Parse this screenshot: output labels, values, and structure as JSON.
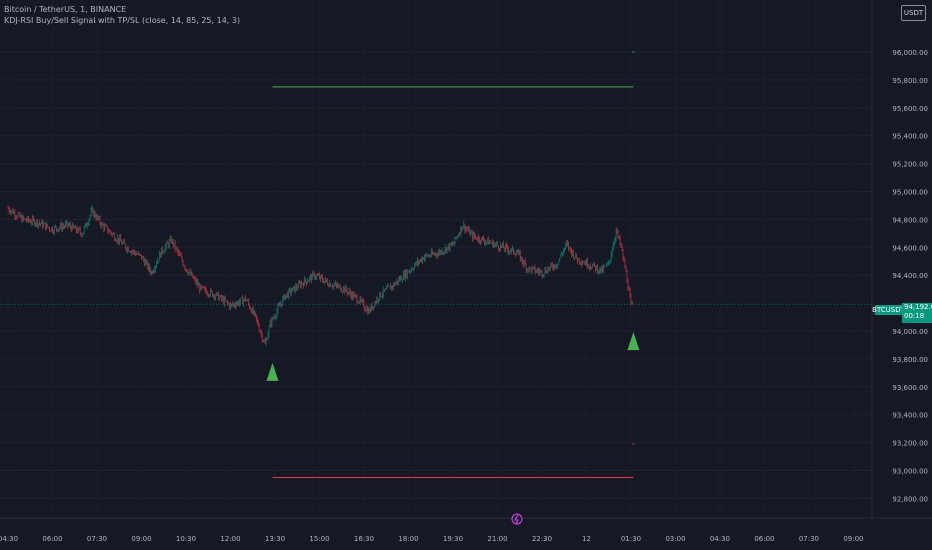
{
  "header": {
    "symbol_line": "Bitcoin / TetherUS, 1, BINANCE",
    "indicator_line": "KDJ-RSI Buy/Sell Signal with TP/SL (close, 14, 85, 25, 14, 3)"
  },
  "currency_button": "USDT",
  "price_badge": {
    "symbol": "BTCUSDT",
    "price": "94,192.00",
    "countdown": "00:18"
  },
  "colors": {
    "background": "#151924",
    "up": "#089981",
    "down": "#f23645",
    "tp": "#4caf50",
    "sl": "#f23645",
    "grid": "#1f2331"
  },
  "chart_data": {
    "type": "candlestick",
    "interval": "1",
    "y_axis": {
      "ticks": [
        {
          "value": 96000,
          "label": "96,000.00"
        },
        {
          "value": 95800,
          "label": "95,800.00"
        },
        {
          "value": 95600,
          "label": "95,600.00"
        },
        {
          "value": 95400,
          "label": "95,400.00"
        },
        {
          "value": 95200,
          "label": "95,200.00"
        },
        {
          "value": 95000,
          "label": "95,000.00"
        },
        {
          "value": 94800,
          "label": "94,800.00"
        },
        {
          "value": 94600,
          "label": "94,600.00"
        },
        {
          "value": 94400,
          "label": "94,400.00"
        },
        {
          "value": 94000,
          "label": "94,000.00"
        },
        {
          "value": 93800,
          "label": "93,800.00"
        },
        {
          "value": 93600,
          "label": "93,600.00"
        },
        {
          "value": 93400,
          "label": "93,400.00"
        },
        {
          "value": 93200,
          "label": "93,200.00"
        },
        {
          "value": 93000,
          "label": "93,000.00"
        },
        {
          "value": 92800,
          "label": "92,800.00"
        }
      ]
    },
    "x_axis": {
      "ticks": [
        {
          "t": 270,
          "label": "04:30"
        },
        {
          "t": 360,
          "label": "06:00"
        },
        {
          "t": 450,
          "label": "07:30"
        },
        {
          "t": 540,
          "label": "09:00"
        },
        {
          "t": 630,
          "label": "10:30"
        },
        {
          "t": 720,
          "label": "12:00"
        },
        {
          "t": 810,
          "label": "13:30"
        },
        {
          "t": 900,
          "label": "15:00"
        },
        {
          "t": 990,
          "label": "16:30"
        },
        {
          "t": 1080,
          "label": "18:00"
        },
        {
          "t": 1170,
          "label": "19:30"
        },
        {
          "t": 1260,
          "label": "21:00"
        },
        {
          "t": 1350,
          "label": "22:30"
        },
        {
          "t": 1440,
          "label": "12"
        },
        {
          "t": 1530,
          "label": "01:30"
        },
        {
          "t": 1620,
          "label": "03:00"
        },
        {
          "t": 1710,
          "label": "04:30"
        },
        {
          "t": 1800,
          "label": "06:00"
        },
        {
          "t": 1890,
          "label": "07:30"
        },
        {
          "t": 1980,
          "label": "09:00"
        }
      ]
    },
    "price_path": [
      [
        270,
        94880
      ],
      [
        300,
        94800
      ],
      [
        330,
        94780
      ],
      [
        360,
        94730
      ],
      [
        390,
        94760
      ],
      [
        420,
        94700
      ],
      [
        440,
        94860
      ],
      [
        460,
        94760
      ],
      [
        480,
        94700
      ],
      [
        510,
        94600
      ],
      [
        540,
        94530
      ],
      [
        560,
        94420
      ],
      [
        580,
        94570
      ],
      [
        600,
        94650
      ],
      [
        630,
        94450
      ],
      [
        660,
        94300
      ],
      [
        690,
        94260
      ],
      [
        720,
        94180
      ],
      [
        750,
        94230
      ],
      [
        770,
        94100
      ],
      [
        790,
        93900
      ],
      [
        800,
        94050
      ],
      [
        830,
        94250
      ],
      [
        860,
        94330
      ],
      [
        890,
        94400
      ],
      [
        920,
        94340
      ],
      [
        950,
        94300
      ],
      [
        980,
        94220
      ],
      [
        1000,
        94140
      ],
      [
        1020,
        94250
      ],
      [
        1050,
        94330
      ],
      [
        1080,
        94430
      ],
      [
        1110,
        94530
      ],
      [
        1140,
        94560
      ],
      [
        1170,
        94620
      ],
      [
        1190,
        94760
      ],
      [
        1210,
        94680
      ],
      [
        1240,
        94640
      ],
      [
        1270,
        94600
      ],
      [
        1300,
        94560
      ],
      [
        1320,
        94450
      ],
      [
        1350,
        94420
      ],
      [
        1380,
        94480
      ],
      [
        1400,
        94620
      ],
      [
        1420,
        94520
      ],
      [
        1450,
        94470
      ],
      [
        1470,
        94430
      ],
      [
        1485,
        94480
      ],
      [
        1500,
        94720
      ],
      [
        1510,
        94600
      ],
      [
        1520,
        94420
      ],
      [
        1530,
        94180
      ],
      [
        1535,
        94192
      ]
    ],
    "last_price": 94192.0,
    "signals": [
      {
        "type": "buy",
        "t": 805,
        "price": 93700
      },
      {
        "type": "buy",
        "t": 1535,
        "price": 93920
      }
    ],
    "levels": [
      {
        "kind": "take_profit",
        "price": 95750,
        "t_start": 805,
        "t_end": 1535
      },
      {
        "kind": "stop_loss",
        "price": 92950,
        "t_start": 805,
        "t_end": 1535
      },
      {
        "kind": "take_profit",
        "price": 96000,
        "t_start": 1533,
        "t_end": 1537
      },
      {
        "kind": "stop_loss",
        "price": 93190,
        "t_start": 1533,
        "t_end": 1537
      }
    ]
  }
}
